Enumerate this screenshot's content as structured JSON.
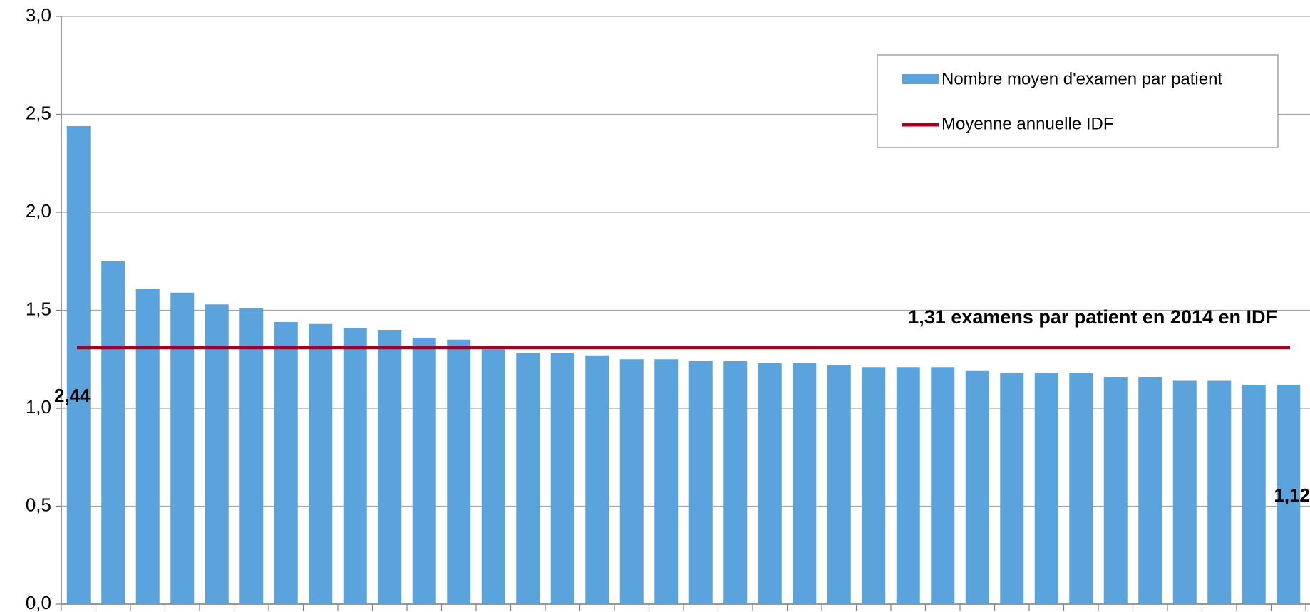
{
  "chart_data": {
    "type": "bar",
    "categories": [
      null,
      null,
      null,
      null,
      null,
      null,
      null,
      null,
      null,
      null,
      null,
      null,
      null,
      null,
      null,
      null,
      null,
      null,
      null,
      null,
      null,
      null,
      null,
      null,
      null,
      null,
      null,
      null,
      null,
      null,
      null,
      null,
      null,
      null,
      null,
      null
    ],
    "series": [
      {
        "name": "Nombre moyen d'examen par patient",
        "color": "#5ba3dc",
        "values": [
          2.44,
          1.75,
          1.61,
          1.59,
          1.53,
          1.51,
          1.44,
          1.43,
          1.41,
          1.4,
          1.36,
          1.35,
          1.3,
          1.28,
          1.28,
          1.27,
          1.25,
          1.25,
          1.24,
          1.24,
          1.23,
          1.23,
          1.22,
          1.21,
          1.21,
          1.21,
          1.19,
          1.18,
          1.18,
          1.18,
          1.16,
          1.16,
          1.14,
          1.14,
          1.12,
          1.12
        ],
        "value_labels": [
          "2,44",
          null,
          null,
          null,
          null,
          null,
          null,
          null,
          null,
          null,
          null,
          null,
          null,
          null,
          null,
          null,
          null,
          null,
          null,
          null,
          null,
          null,
          null,
          null,
          null,
          null,
          null,
          null,
          null,
          null,
          null,
          null,
          null,
          null,
          null,
          "1,12"
        ]
      }
    ],
    "reference_line": {
      "name": "Moyenne annuelle IDF",
      "color": "#a50021",
      "value": 1.31
    },
    "annotation": "1,31 examens par patient en 2014 en IDF",
    "ylim": [
      0,
      3
    ],
    "yticks": [
      {
        "value": 0,
        "label": "0,0"
      },
      {
        "value": 0.5,
        "label": "0,5"
      },
      {
        "value": 1,
        "label": "1,0"
      },
      {
        "value": 1.5,
        "label": "1,5"
      },
      {
        "value": 2,
        "label": "2,0"
      },
      {
        "value": 2.5,
        "label": "2,5"
      },
      {
        "value": 3,
        "label": "3,0"
      }
    ],
    "grid": true,
    "legend": "top-right"
  }
}
